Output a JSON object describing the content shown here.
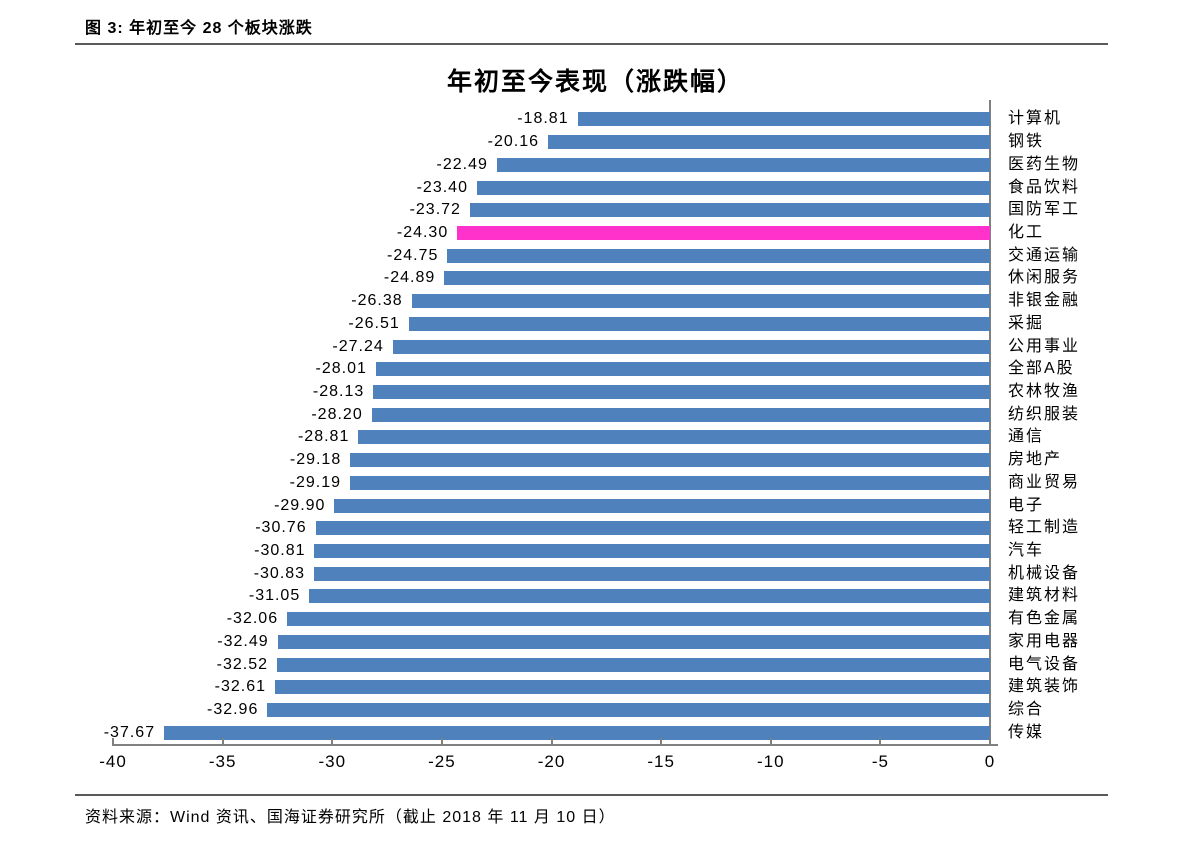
{
  "figure": {
    "caption": "图 3: 年初至今 28 个板块涨跌",
    "source_note": "资料来源：Wind 资讯、国海证券研究所（截止 2018 年 11 月 10 日）"
  },
  "chart_data": {
    "type": "bar",
    "orientation": "horizontal",
    "title": "年初至今表现（涨跌幅）",
    "categories": [
      "计算机",
      "钢铁",
      "医药生物",
      "食品饮料",
      "国防军工",
      "化工",
      "交通运输",
      "休闲服务",
      "非银金融",
      "采掘",
      "公用事业",
      "全部A股",
      "农林牧渔",
      "纺织服装",
      "通信",
      "房地产",
      "商业贸易",
      "电子",
      "轻工制造",
      "汽车",
      "机械设备",
      "建筑材料",
      "有色金属",
      "家用电器",
      "电气设备",
      "建筑装饰",
      "综合",
      "传媒"
    ],
    "values": [
      -18.81,
      -20.16,
      -22.49,
      -23.4,
      -23.72,
      -24.3,
      -24.75,
      -24.89,
      -26.38,
      -26.51,
      -27.24,
      -28.01,
      -28.13,
      -28.2,
      -28.81,
      -29.18,
      -29.19,
      -29.9,
      -30.76,
      -30.81,
      -30.83,
      -31.05,
      -32.06,
      -32.49,
      -32.52,
      -32.61,
      -32.96,
      -37.67
    ],
    "highlight_index": 5,
    "highlight_category": "化工",
    "xlim": [
      -40,
      0
    ],
    "x_ticks": [
      -40,
      -35,
      -30,
      -25,
      -20,
      -15,
      -10,
      -5,
      0
    ],
    "grid": false,
    "legend": "none",
    "value_labels_position": "left-of-bar",
    "category_labels_position": "right-of-axis",
    "bar_color": "#4F81BD",
    "highlight_color": "#FF33CC",
    "axis_color": "#808080",
    "text_color": "#000000"
  }
}
